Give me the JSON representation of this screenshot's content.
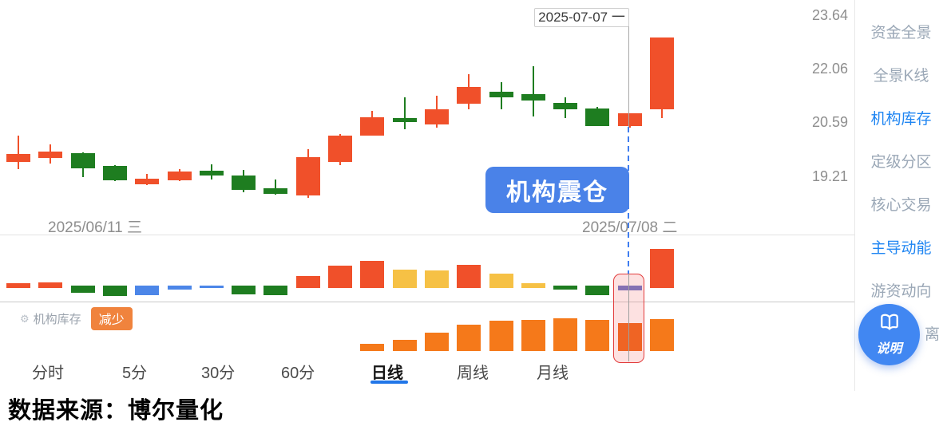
{
  "tooltip": {
    "date": "2025-07-07 一"
  },
  "price_axis": {
    "labels": [
      "23.64",
      "22.06",
      "20.59",
      "19.21"
    ]
  },
  "x_axis": {
    "start": "2025/06/11 三",
    "end": "2025/07/08 二"
  },
  "event_badge": {
    "label": "机构震仓"
  },
  "legend": {
    "label": "机构库存",
    "status": "减少"
  },
  "tabs": {
    "items": [
      {
        "label": "分时"
      },
      {
        "label": "5分"
      },
      {
        "label": "30分"
      },
      {
        "label": "60分"
      },
      {
        "label": "日线"
      },
      {
        "label": "周线"
      },
      {
        "label": "月线"
      }
    ],
    "active": "日线"
  },
  "footer": {
    "text": "数据来源：博尔量化"
  },
  "sidebar": {
    "items": [
      {
        "label": "资金全景",
        "active": false
      },
      {
        "label": "全景K线",
        "active": false
      },
      {
        "label": "机构库存",
        "active": true
      },
      {
        "label": "定级分区",
        "active": false
      },
      {
        "label": "核心交易",
        "active": false
      },
      {
        "label": "主导动能",
        "active": true
      },
      {
        "label": "游资动向",
        "active": false
      },
      {
        "label": "离",
        "active": false
      }
    ]
  },
  "fab": {
    "label": "说明",
    "icon": "open-book-icon"
  },
  "colors": {
    "up": "#f0502a",
    "down": "#1e7d20",
    "blue": "#4c86e8",
    "yellow": "#f6c145",
    "purple": "#6670c5",
    "orange": "#f5791a",
    "orange_highlight": "#ee5f0e"
  },
  "chart_data": {
    "type": "candlestick",
    "title": "机构库存 (日线)",
    "y_axis_ticks": [
      23.64,
      22.06,
      20.59,
      19.21
    ],
    "x_range": [
      "2025/06/11 三",
      "2025/07/08 二"
    ],
    "crosshair": {
      "index": 19,
      "date": "2025-07-07 一"
    },
    "highlight_index": 19,
    "candles": [
      {
        "o": 19.61,
        "h": 20.33,
        "l": 19.41,
        "c": 19.83
      },
      {
        "o": 19.72,
        "h": 20.09,
        "l": 19.56,
        "c": 19.89
      },
      {
        "o": 19.85,
        "h": 19.87,
        "l": 19.19,
        "c": 19.43
      },
      {
        "o": 19.5,
        "h": 19.52,
        "l": 19.08,
        "c": 19.1
      },
      {
        "o": 18.99,
        "h": 19.28,
        "l": 18.97,
        "c": 19.15
      },
      {
        "o": 19.1,
        "h": 19.41,
        "l": 19.08,
        "c": 19.34
      },
      {
        "o": 19.36,
        "h": 19.54,
        "l": 19.12,
        "c": 19.23
      },
      {
        "o": 19.23,
        "h": 19.39,
        "l": 18.77,
        "c": 18.84
      },
      {
        "o": 18.88,
        "h": 19.12,
        "l": 18.71,
        "c": 18.73
      },
      {
        "o": 18.68,
        "h": 19.96,
        "l": 18.62,
        "c": 19.74
      },
      {
        "o": 19.61,
        "h": 20.37,
        "l": 19.52,
        "c": 20.33
      },
      {
        "o": 20.33,
        "h": 21.01,
        "l": 20.33,
        "c": 20.83
      },
      {
        "o": 20.81,
        "h": 21.38,
        "l": 20.5,
        "c": 20.7
      },
      {
        "o": 20.64,
        "h": 21.43,
        "l": 20.55,
        "c": 21.05
      },
      {
        "o": 21.21,
        "h": 22.02,
        "l": 21.05,
        "c": 21.67
      },
      {
        "o": 21.54,
        "h": 21.8,
        "l": 21.05,
        "c": 21.38
      },
      {
        "o": 21.47,
        "h": 22.24,
        "l": 20.86,
        "c": 21.29
      },
      {
        "o": 21.23,
        "h": 21.38,
        "l": 20.81,
        "c": 21.05
      },
      {
        "o": 21.07,
        "h": 21.12,
        "l": 20.59,
        "c": 20.59
      },
      {
        "o": 20.59,
        "h": 20.94,
        "l": 20.55,
        "c": 20.94
      },
      {
        "o": 21.05,
        "h": 23.03,
        "l": 20.81,
        "c": 23.03
      }
    ],
    "inventory_change_bars": {
      "values": [
        6,
        7,
        -9,
        -13,
        -12,
        -5,
        -3,
        -11,
        -12,
        15,
        28,
        34,
        23,
        22,
        29,
        18,
        6,
        -5,
        -12,
        -6,
        49
      ],
      "colors": [
        "up",
        "up",
        "down",
        "down",
        "blue",
        "blue",
        "blue",
        "down",
        "down",
        "up",
        "up",
        "up",
        "yellow",
        "yellow",
        "up",
        "yellow",
        "yellow",
        "down",
        "down",
        "purple",
        "up"
      ]
    },
    "inventory_level_bars": {
      "values": [
        0,
        0,
        0,
        0,
        0,
        0,
        0,
        0,
        0,
        0,
        0,
        9,
        14,
        23,
        33,
        38,
        39,
        41,
        39,
        35,
        40
      ],
      "color": "orange",
      "highlight_index": 19
    }
  }
}
